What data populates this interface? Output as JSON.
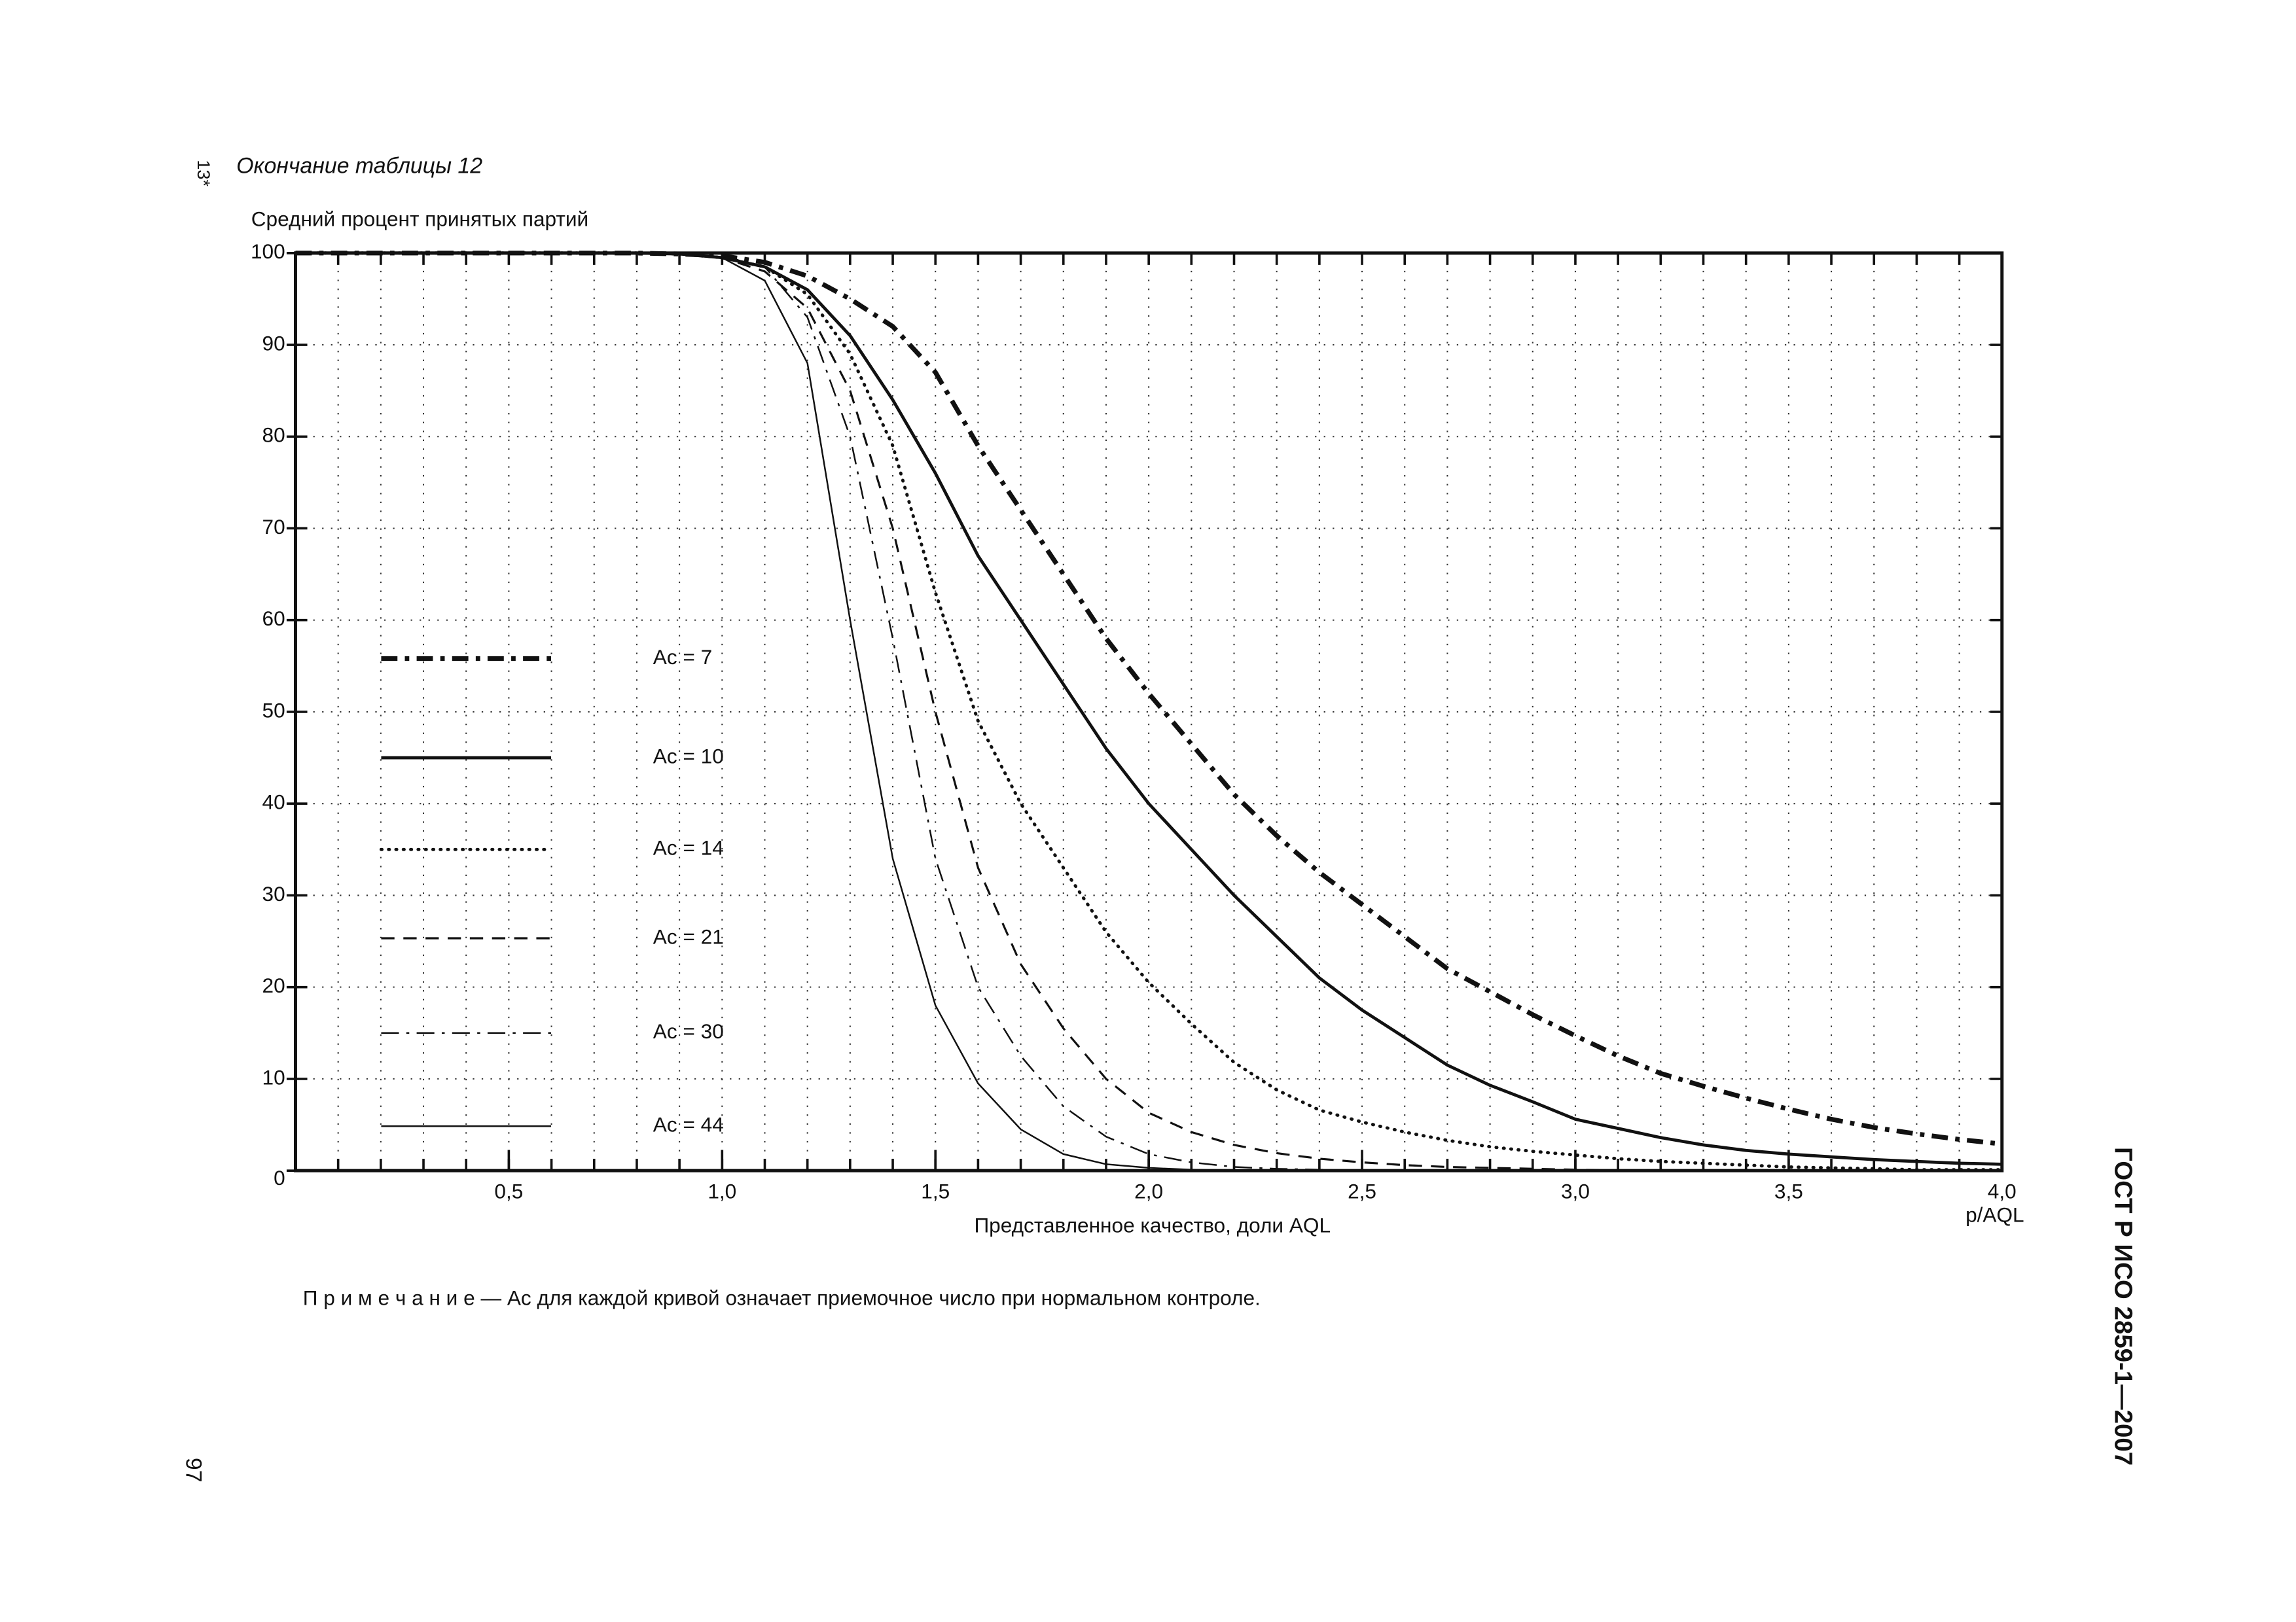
{
  "page": {
    "page_marker": "13*",
    "header": "Окончание таблицы 12",
    "note": "П р и м е ч а н и е — Ас для каждой кривой означает приемочное число при нормальном контроле.",
    "page_number": "97",
    "standard": "ГОСТ Р ИСО 2859-1—2007"
  },
  "chart_data": {
    "type": "line",
    "ylabel": "Средний процент принятых партий",
    "xlabel": "Представленное качество, доли AQL",
    "x_unit": "p/AQL",
    "xlim": [
      0,
      4.0
    ],
    "ylim": [
      0,
      100
    ],
    "yticks": [
      0,
      10,
      20,
      30,
      40,
      50,
      60,
      70,
      80,
      90,
      100
    ],
    "xticks": [
      {
        "value": 0.5,
        "label": "0,5"
      },
      {
        "value": 1.0,
        "label": "1,0"
      },
      {
        "value": 1.5,
        "label": "1,5"
      },
      {
        "value": 2.0,
        "label": "2,0"
      },
      {
        "value": 2.5,
        "label": "2,5"
      },
      {
        "value": 3.0,
        "label": "3,0"
      },
      {
        "value": 3.5,
        "label": "3,5"
      },
      {
        "value": 4.0,
        "label": "4,0"
      }
    ],
    "xgrid": [
      0.1,
      0.2,
      0.3,
      0.4,
      0.5,
      0.6,
      0.7,
      0.8,
      0.9,
      1.0,
      1.1,
      1.2,
      1.3,
      1.4,
      1.5,
      1.6,
      1.7,
      1.8,
      1.9,
      2.0,
      2.1,
      2.2,
      2.3,
      2.4,
      2.5,
      2.6,
      2.7,
      2.8,
      2.9,
      3.0,
      3.1,
      3.2,
      3.3,
      3.4,
      3.5,
      3.6,
      3.7,
      3.8,
      3.9
    ],
    "grid": true,
    "x": [
      0.0,
      0.1,
      0.2,
      0.3,
      0.4,
      0.5,
      0.6,
      0.7,
      0.8,
      0.9,
      1.0,
      1.1,
      1.2,
      1.3,
      1.4,
      1.5,
      1.6,
      1.7,
      1.8,
      1.9,
      2.0,
      2.1,
      2.2,
      2.3,
      2.4,
      2.5,
      2.6,
      2.7,
      2.8,
      2.9,
      3.0,
      3.1,
      3.2,
      3.3,
      3.4,
      3.5,
      3.6,
      3.7,
      3.8,
      3.9,
      4.0
    ],
    "series": [
      {
        "name": "Ac = 7",
        "color": "#111111",
        "style": "dashdot-heavy",
        "values": [
          100,
          100,
          100,
          100,
          100,
          100,
          100,
          100,
          100,
          99.9,
          99.7,
          99,
          97.5,
          95,
          92,
          87,
          79,
          72,
          65,
          58,
          52,
          46.5,
          41,
          36.5,
          32.5,
          29,
          25.5,
          22,
          19.5,
          17,
          14.7,
          12.5,
          10.6,
          9.2,
          7.9,
          6.7,
          5.6,
          4.7,
          4,
          3.4,
          2.9
        ]
      },
      {
        "name": "Ac = 10",
        "color": "#111111",
        "style": "solid-heavy",
        "values": [
          100,
          100,
          100,
          100,
          100,
          100,
          100,
          100,
          100,
          99.9,
          99.5,
          98.5,
          96,
          91,
          84,
          76,
          67,
          60,
          53,
          46,
          40,
          35,
          30,
          25.5,
          21,
          17.5,
          14.5,
          11.5,
          9.3,
          7.5,
          5.6,
          4.6,
          3.6,
          2.8,
          2.2,
          1.8,
          1.5,
          1.2,
          1.0,
          0.8,
          0.7
        ]
      },
      {
        "name": "Ac = 14",
        "color": "#111111",
        "style": "dotted",
        "values": [
          100,
          100,
          100,
          100,
          100,
          100,
          100,
          100,
          100,
          99.9,
          99.5,
          98.5,
          95.5,
          89,
          79,
          63,
          49,
          40,
          33,
          26,
          20.5,
          16,
          11.8,
          8.8,
          6.6,
          5.3,
          4.2,
          3.3,
          2.6,
          2.1,
          1.7,
          1.3,
          1.0,
          0.8,
          0.6,
          0.4,
          0.3,
          0.2,
          0.1,
          0.1,
          0.1
        ]
      },
      {
        "name": "Ac = 21",
        "color": "#111111",
        "style": "dashed",
        "values": [
          100,
          100,
          100,
          100,
          100,
          100,
          100,
          100,
          100,
          99.9,
          99.5,
          98,
          94,
          85,
          70,
          50,
          33,
          22.5,
          15.5,
          10,
          6.3,
          4.2,
          2.8,
          1.9,
          1.3,
          0.9,
          0.6,
          0.4,
          0.3,
          0.2,
          0.1,
          0,
          0,
          0,
          0,
          0,
          0,
          0,
          0,
          0,
          0
        ]
      },
      {
        "name": "Ac = 30",
        "color": "#111111",
        "style": "dashdot-light",
        "values": [
          100,
          100,
          100,
          100,
          100,
          100,
          100,
          100,
          100,
          99.9,
          99.7,
          98.5,
          93,
          80,
          58,
          34,
          20,
          12.5,
          7,
          3.7,
          1.8,
          0.9,
          0.4,
          0.2,
          0.1,
          0,
          0,
          0,
          0,
          0,
          0,
          0,
          0,
          0,
          0,
          0,
          0,
          0,
          0,
          0,
          0
        ]
      },
      {
        "name": "Ac = 44",
        "color": "#111111",
        "style": "solid-light",
        "values": [
          100,
          100,
          100,
          100,
          100,
          100,
          100,
          100,
          100,
          99.9,
          99.5,
          97,
          88,
          60,
          34,
          18,
          9.5,
          4.5,
          1.8,
          0.7,
          0.3,
          0.1,
          0,
          0,
          0,
          0,
          0,
          0,
          0,
          0,
          0,
          0,
          0,
          0,
          0,
          0,
          0,
          0,
          0,
          0,
          0
        ]
      }
    ]
  }
}
